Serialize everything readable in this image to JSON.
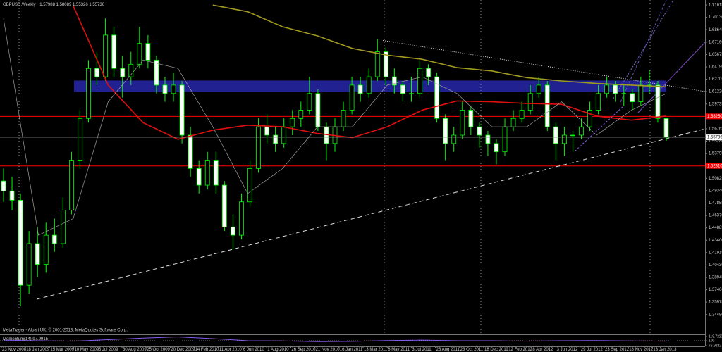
{
  "chart_data": {
    "type": "candlestick",
    "title": "GBPUSD,Weekly",
    "ohlc": [
      1.57988,
      1.58089,
      1.55326,
      1.55736
    ],
    "footer": "MetaTrader - Alpari UK, © 2001-2013, MetaQuotes Software Corp.",
    "color": "#00ff00",
    "bull_fill": "#000000",
    "bear_fill": "#ffffff",
    "candles": [
      [
        1.505,
        1.52,
        1.48,
        1.493
      ],
      [
        1.493,
        1.51,
        1.47,
        1.482
      ],
      [
        1.482,
        1.49,
        1.355,
        1.38
      ],
      [
        1.38,
        1.445,
        1.37,
        1.43
      ],
      [
        1.43,
        1.45,
        1.39,
        1.405
      ],
      [
        1.405,
        1.455,
        1.395,
        1.44
      ],
      [
        1.44,
        1.46,
        1.42,
        1.43
      ],
      [
        1.43,
        1.485,
        1.425,
        1.47
      ],
      [
        1.47,
        1.54,
        1.465,
        1.53
      ],
      [
        1.53,
        1.59,
        1.52,
        1.58
      ],
      [
        1.58,
        1.65,
        1.575,
        1.64
      ],
      [
        1.64,
        1.66,
        1.62,
        1.63
      ],
      [
        1.63,
        1.7,
        1.625,
        1.68
      ],
      [
        1.68,
        1.69,
        1.63,
        1.64
      ],
      [
        1.64,
        1.655,
        1.605,
        1.63
      ],
      [
        1.63,
        1.66,
        1.62,
        1.645
      ],
      [
        1.645,
        1.69,
        1.64,
        1.67
      ],
      [
        1.67,
        1.68,
        1.64,
        1.65
      ],
      [
        1.65,
        1.655,
        1.61,
        1.62
      ],
      [
        1.62,
        1.63,
        1.6,
        1.61
      ],
      [
        1.61,
        1.635,
        1.6,
        1.62
      ],
      [
        1.62,
        1.625,
        1.55,
        1.56
      ],
      [
        1.56,
        1.57,
        1.51,
        1.52
      ],
      [
        1.52,
        1.53,
        1.49,
        1.5
      ],
      [
        1.5,
        1.54,
        1.495,
        1.53
      ],
      [
        1.53,
        1.54,
        1.49,
        1.5
      ],
      [
        1.5,
        1.505,
        1.445,
        1.45
      ],
      [
        1.45,
        1.465,
        1.423,
        1.44
      ],
      [
        1.44,
        1.49,
        1.435,
        1.48
      ],
      [
        1.48,
        1.53,
        1.475,
        1.52
      ],
      [
        1.52,
        1.58,
        1.515,
        1.57
      ],
      [
        1.57,
        1.585,
        1.55,
        1.56
      ],
      [
        1.56,
        1.57,
        1.54,
        1.55
      ],
      [
        1.55,
        1.58,
        1.545,
        1.57
      ],
      [
        1.57,
        1.59,
        1.56,
        1.58
      ],
      [
        1.58,
        1.6,
        1.57,
        1.59
      ],
      [
        1.59,
        1.63,
        1.585,
        1.61
      ],
      [
        1.61,
        1.615,
        1.565,
        1.57
      ],
      [
        1.57,
        1.575,
        1.53,
        1.55
      ],
      [
        1.55,
        1.58,
        1.54,
        1.57
      ],
      [
        1.57,
        1.6,
        1.565,
        1.59
      ],
      [
        1.59,
        1.63,
        1.585,
        1.62
      ],
      [
        1.62,
        1.63,
        1.6,
        1.61
      ],
      [
        1.61,
        1.64,
        1.605,
        1.63
      ],
      [
        1.63,
        1.675,
        1.625,
        1.66
      ],
      [
        1.66,
        1.665,
        1.62,
        1.63
      ],
      [
        1.63,
        1.64,
        1.61,
        1.62
      ],
      [
        1.62,
        1.625,
        1.6,
        1.61
      ],
      [
        1.61,
        1.63,
        1.6,
        1.61
      ],
      [
        1.61,
        1.65,
        1.605,
        1.64
      ],
      [
        1.64,
        1.645,
        1.62,
        1.63
      ],
      [
        1.63,
        1.635,
        1.575,
        1.58
      ],
      [
        1.58,
        1.585,
        1.53,
        1.55
      ],
      [
        1.55,
        1.57,
        1.54,
        1.56
      ],
      [
        1.56,
        1.6,
        1.555,
        1.59
      ],
      [
        1.59,
        1.595,
        1.56,
        1.57
      ],
      [
        1.57,
        1.575,
        1.545,
        1.56
      ],
      [
        1.56,
        1.565,
        1.535,
        1.55
      ],
      [
        1.55,
        1.555,
        1.525,
        1.54
      ],
      [
        1.54,
        1.58,
        1.535,
        1.57
      ],
      [
        1.57,
        1.59,
        1.565,
        1.58
      ],
      [
        1.58,
        1.6,
        1.575,
        1.59
      ],
      [
        1.59,
        1.62,
        1.585,
        1.61
      ],
      [
        1.61,
        1.63,
        1.605,
        1.62
      ],
      [
        1.62,
        1.625,
        1.565,
        1.57
      ],
      [
        1.57,
        1.575,
        1.53,
        1.55
      ],
      [
        1.55,
        1.57,
        1.535,
        1.56
      ],
      [
        1.56,
        1.565,
        1.54,
        1.56
      ],
      [
        1.56,
        1.58,
        1.555,
        1.57
      ],
      [
        1.57,
        1.6,
        1.565,
        1.59
      ],
      [
        1.59,
        1.62,
        1.585,
        1.61
      ],
      [
        1.61,
        1.63,
        1.605,
        1.62
      ],
      [
        1.62,
        1.625,
        1.6,
        1.61
      ],
      [
        1.61,
        1.62,
        1.595,
        1.61
      ],
      [
        1.61,
        1.615,
        1.59,
        1.6
      ],
      [
        1.6,
        1.63,
        1.595,
        1.62
      ],
      [
        1.62,
        1.638,
        1.61,
        1.62
      ],
      [
        1.62,
        1.625,
        1.575,
        1.58
      ],
      [
        1.57988,
        1.58089,
        1.55326,
        1.55736
      ]
    ],
    "moving_averages": [
      {
        "color": "#e01010",
        "values": [
          null,
          null,
          1.715,
          1.62,
          1.575,
          1.555,
          1.566,
          1.572,
          1.57,
          1.562,
          1.557,
          1.57,
          1.59,
          1.601,
          1.6,
          1.598,
          1.597,
          1.583,
          1.578,
          1.583
        ]
      },
      {
        "color": "#a09a20",
        "values": [
          null,
          null,
          null,
          null,
          null,
          null,
          1.716,
          1.708,
          1.69,
          1.679,
          1.664,
          1.656,
          1.651,
          1.641,
          1.637,
          1.629,
          1.625,
          1.622,
          1.62,
          1.618
        ]
      },
      {
        "color": "#a0a0a0",
        "values": [
          1.7,
          1.44,
          1.46,
          1.6,
          1.65,
          1.64,
          1.57,
          1.49,
          1.52,
          1.57,
          1.57,
          1.62,
          1.63,
          1.61,
          1.57,
          1.57,
          1.6,
          1.56,
          1.59,
          1.61
        ]
      }
    ],
    "levels": [
      {
        "value": 1.5825,
        "label": "1.58250",
        "color": "#ff0000"
      },
      {
        "value": 1.5231,
        "label": "1.52310",
        "color": "#ff0000"
      }
    ],
    "zone": {
      "values": [
        1.612,
        1.6255
      ],
      "color": "#23239a"
    },
    "ylim": [
      1.3219,
      1.7221
    ],
    "yticks": [
      {
        "value": 1.3449,
        "label": "1.34490"
      },
      1.35975,
      {
        "value": 1.3746,
        "label": "1.37460"
      },
      1.38945,
      {
        "value": 1.4043,
        "label": "1.40430"
      },
      1.41915,
      {
        "value": 1.434,
        "label": "1.43400"
      },
      1.44885,
      {
        "value": 1.4637,
        "label": "1.46370"
      },
      1.47855,
      {
        "value": 1.4934,
        "label": "1.49340"
      },
      1.50825,
      {
        "value": 1.5231,
        "label": "1.52310"
      },
      1.53795,
      {
        "value": 1.5528,
        "label": "1.55280"
      },
      1.56765,
      {
        "value": 1.5825,
        "label": "1.58250"
      },
      1.59735,
      {
        "value": 1.6122,
        "label": "1.61220"
      },
      1.62705,
      {
        "value": 1.6419,
        "label": "1.64190"
      },
      1.65675,
      {
        "value": 1.6716,
        "label": "1.67160"
      },
      1.68645,
      {
        "value": 1.7013,
        "label": "1.70130"
      },
      1.71615
    ],
    "x_labels": [
      "23 Nov 2008",
      "18 Jan 2009",
      "15 Mar 2009",
      "10 May 2009",
      "5 Jul 2009",
      "30 Aug 2009",
      "25 Oct 2009",
      "20 Dec 2009",
      "14 Feb 2010",
      "11 Apr 2010",
      "6 Jun 2010",
      "1 Aug 2010",
      "26 Sep 2010",
      "21 Nov 2010",
      "16 Jan 2011",
      "13 Mar 2011",
      "8 May 2011",
      "3 Jul 2011",
      "28 Aug 2011",
      "23 Oct 2011",
      "18 Dec 2011",
      "12 Feb 2012",
      "8 Apr 2012",
      "3 Jun 2012",
      "29 Jul 2012",
      "23 Sep 2012",
      "18 Nov 2012",
      "13 Jan 2013"
    ],
    "momentum": {
      "title": "Momentum(14)",
      "value": 97.9915,
      "color": "#8a5cf0",
      "values": [
        103,
        100,
        98,
        105,
        112,
        118,
        110,
        100,
        99,
        96,
        97,
        101,
        103,
        100,
        100,
        98,
        100,
        101,
        99,
        98
      ],
      "ylim": [
        76.9282,
        119.7223
      ],
      "yticks": [
        119.7223,
        100,
        76.9282
      ]
    }
  }
}
